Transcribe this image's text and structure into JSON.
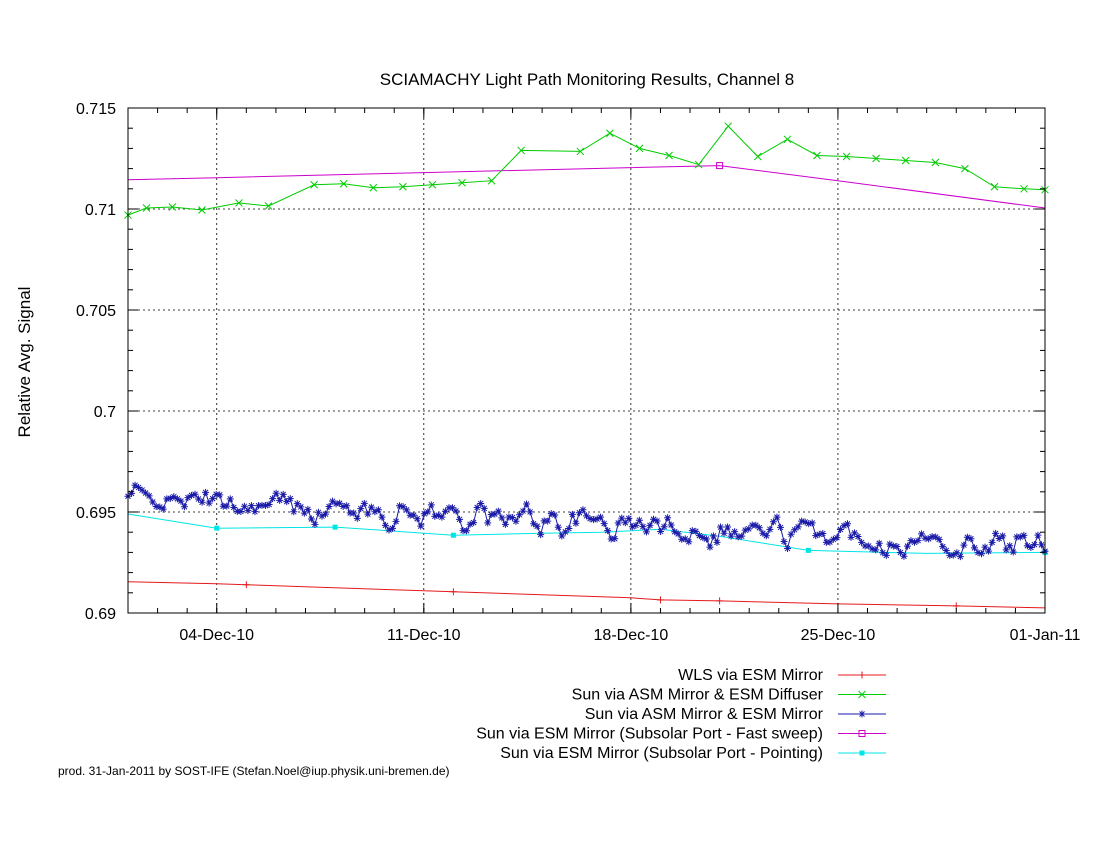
{
  "chart_data": {
    "type": "line",
    "title": "SCIAMACHY Light Path Monitoring Results, Channel 8",
    "xlabel": "",
    "ylabel": "Relative Avg. Signal",
    "x_axis": {
      "start_day": "01-Dec-10",
      "end_day": "01-Jan-11",
      "tick_labels": [
        "04-Dec-10",
        "11-Dec-10",
        "18-Dec-10",
        "25-Dec-10",
        "01-Jan-11"
      ]
    },
    "ylim": [
      0.69,
      0.715
    ],
    "y_tick_labels": [
      "0.69",
      "0.695",
      "0.7",
      "0.705",
      "0.71",
      "0.715"
    ],
    "grid": true,
    "legend_position": "bottom-right, below plot",
    "series": [
      {
        "name": "WLS via ESM Mirror",
        "color": "#e41a1c",
        "marker": "plus",
        "x": [
          "01-Dec-10",
          "04-Dec-10",
          "05-Dec-10",
          "11-Dec-10",
          "12-Dec-10",
          "18-Dec-10",
          "19-Dec-10",
          "21-Dec-10",
          "25-Dec-10",
          "29-Dec-10",
          "01-Jan-11"
        ],
        "y": [
          0.69155,
          0.69145,
          0.6914,
          0.6911,
          0.69105,
          0.69075,
          0.69065,
          0.6906,
          0.69045,
          0.69035,
          0.69025
        ],
        "markers": [
          false,
          false,
          true,
          false,
          true,
          false,
          true,
          true,
          false,
          true,
          false
        ]
      },
      {
        "name": "Sun via ASM Mirror & ESM Diffuser",
        "color": "#00cc00",
        "marker": "cross",
        "x": [
          "01-Dec-10",
          "01-Dec-10 15:00",
          "02-Dec-10 12:00",
          "03-Dec-10 12:00",
          "04-Dec-10 18:00",
          "05-Dec-10 18:00",
          "07-Dec-10 07:00",
          "08-Dec-10 07:00",
          "09-Dec-10 07:00",
          "10-Dec-10 07:00",
          "11-Dec-10 07:00",
          "12-Dec-10 07:00",
          "13-Dec-10 07:00",
          "14-Dec-10 07:00",
          "16-Dec-10 07:00",
          "17-Dec-10 07:00",
          "18-Dec-10 07:00",
          "19-Dec-10 07:00",
          "20-Dec-10 07:00",
          "21-Dec-10 07:00",
          "22-Dec-10 07:00",
          "23-Dec-10 07:00",
          "24-Dec-10 07:00",
          "25-Dec-10 07:00",
          "26-Dec-10 07:00",
          "27-Dec-10 07:00",
          "28-Dec-10 07:00",
          "29-Dec-10 07:00",
          "30-Dec-10 07:00",
          "31-Dec-10 07:00",
          "01-Jan-11"
        ],
        "y": [
          0.7097,
          0.71005,
          0.7101,
          0.70995,
          0.7103,
          0.71015,
          0.7112,
          0.71125,
          0.71105,
          0.7111,
          0.7112,
          0.7113,
          0.7114,
          0.7129,
          0.71285,
          0.71375,
          0.713,
          0.71265,
          0.7122,
          0.7141,
          0.7126,
          0.71345,
          0.71265,
          0.7126,
          0.7125,
          0.7124,
          0.7123,
          0.712,
          0.7111,
          0.711,
          0.71095
        ],
        "markers": true
      },
      {
        "name": "Sun via ASM Mirror & ESM Mirror",
        "color": "#1a1aa8",
        "marker": "star",
        "description_note": "",
        "x_start": "01-Dec-10",
        "x_end": "01-Jan-11",
        "start_value": 0.6957,
        "end_value": 0.6933,
        "noise_amplitude": 0.0006,
        "markers": true
      },
      {
        "name": "Sun via ESM Mirror (Subsolar Port - Fast sweep)",
        "color": "#cc00cc",
        "marker": "square-open",
        "x": [
          "01-Dec-10",
          "04-Dec-10",
          "11-Dec-10",
          "18-Dec-10",
          "21-Dec-10",
          "25-Dec-10",
          "01-Jan-11"
        ],
        "y": [
          0.71145,
          0.71155,
          0.7118,
          0.71205,
          0.71215,
          0.7114,
          0.71005
        ],
        "markers": [
          false,
          false,
          false,
          false,
          true,
          false,
          false
        ]
      },
      {
        "name": "Sun via ESM Mirror (Subsolar Port - Pointing)",
        "color": "#00e5e5",
        "marker": "square-filled",
        "x": [
          "01-Dec-10",
          "04-Dec-10",
          "08-Dec-10",
          "12-Dec-10",
          "15-Dec-10",
          "17-Dec-10",
          "19-Dec-10",
          "21-Dec-10",
          "24-Dec-10",
          "28-Dec-10",
          "01-Jan-11"
        ],
        "y": [
          0.6949,
          0.6942,
          0.69425,
          0.69385,
          0.69395,
          0.694,
          0.69415,
          0.6938,
          0.6931,
          0.69295,
          0.693
        ],
        "markers": [
          false,
          true,
          true,
          true,
          false,
          false,
          false,
          false,
          true,
          false,
          true
        ]
      }
    ]
  },
  "credit_text": "prod. 31-Jan-2011 by SOST-IFE (Stefan.Noel@iup.physik.uni-bremen.de)"
}
